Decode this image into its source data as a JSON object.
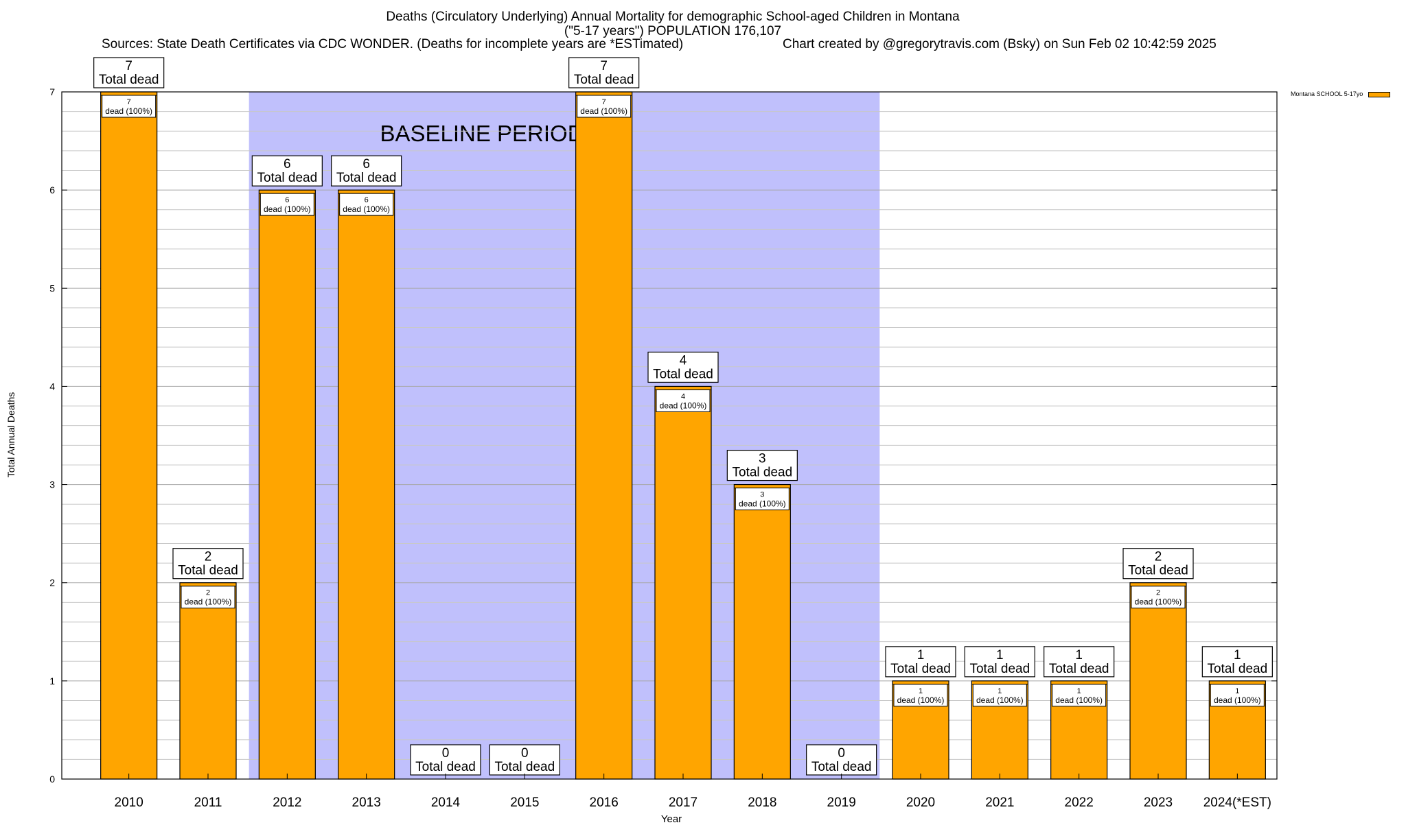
{
  "title_line1": "Deaths (Circulatory Underlying) Annual Mortality for demographic School-aged Children in Montana",
  "title_line2": "(\"5-17 years\") POPULATION 176,107",
  "sources": "Sources: State Death Certificates via CDC WONDER. (Deaths for incomplete years are *ESTimated)",
  "credit": "Chart created by @gregorytravis.com (Bsky) on Sun Feb 02 10:42:59 2025",
  "colors": {
    "bar": "#ffa500",
    "baseline": "#c0c0fc",
    "grid": "#c8c8c8"
  },
  "chart_data": {
    "type": "bar",
    "categories": [
      "2010",
      "2011",
      "2012",
      "2013",
      "2014",
      "2015",
      "2016",
      "2017",
      "2018",
      "2019",
      "2020",
      "2021",
      "2022",
      "2023",
      "2024(*EST)"
    ],
    "series": [
      {
        "name": "Montana SCHOOL 5-17yo",
        "values": [
          7,
          2,
          6,
          6,
          0,
          0,
          7,
          4,
          3,
          0,
          1,
          1,
          1,
          2,
          1
        ]
      }
    ],
    "ylabel": "Total Annual Deaths",
    "xlabel": "Year",
    "ylim": [
      0,
      7
    ],
    "yticks": [
      0,
      1,
      2,
      3,
      4,
      5,
      6,
      7
    ],
    "top_label_suffix": "Total dead",
    "inner_label_suffix": "dead (100%)",
    "shaded_region": {
      "label": "BASELINE PERIOD",
      "from_category": "2012",
      "to_category": "2019"
    },
    "grid": true,
    "legend": "top-right"
  }
}
